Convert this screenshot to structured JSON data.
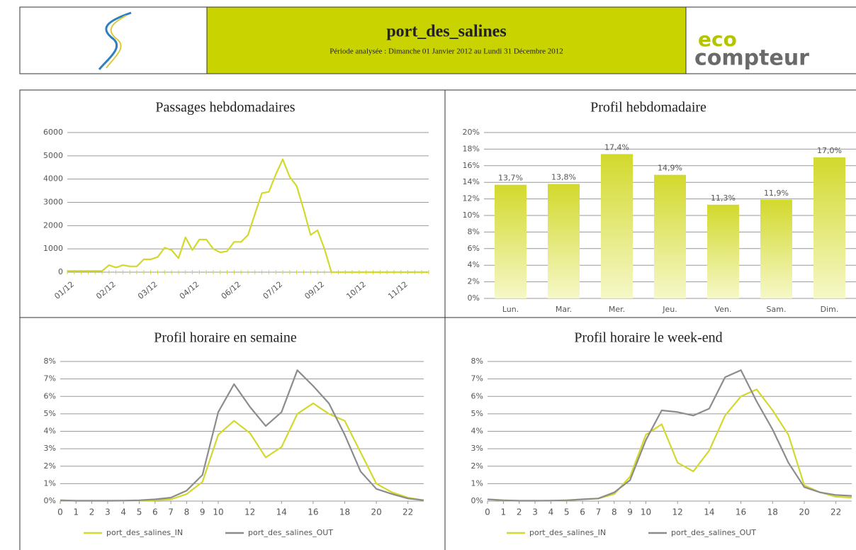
{
  "header": {
    "title": "port_des_salines",
    "subtitle": "Période analysée : Dimanche 01 Janvier 2012 au Lundi 31 Décembre 2012",
    "logo": [
      "eco",
      "compteur"
    ]
  },
  "chart_data": [
    {
      "type": "line",
      "title": "Passages hebdomadaires",
      "categories": [
        "01/12",
        null,
        null,
        null,
        null,
        null,
        "02/12",
        null,
        null,
        null,
        null,
        null,
        "03/12",
        null,
        null,
        null,
        null,
        null,
        "04/12",
        null,
        null,
        null,
        null,
        null,
        "06/12",
        null,
        null,
        null,
        null,
        null,
        "07/12",
        null,
        null,
        null,
        null,
        null,
        "09/12",
        null,
        null,
        null,
        null,
        null,
        "10/12",
        null,
        null,
        null,
        null,
        null,
        "11/12",
        null,
        null,
        null,
        null
      ],
      "series": [
        {
          "name": null,
          "color": "#d2d92c",
          "values": [
            50,
            50,
            50,
            50,
            50,
            50,
            300,
            200,
            300,
            250,
            250,
            550,
            550,
            650,
            1050,
            950,
            600,
            1500,
            950,
            1400,
            1400,
            1000,
            850,
            900,
            1300,
            1300,
            1600,
            2500,
            3400,
            3450,
            4200,
            4850,
            4100,
            3700,
            2700,
            1600,
            1800,
            1000,
            0,
            0,
            0,
            0,
            0,
            0,
            0,
            0,
            0,
            0,
            0,
            0,
            0,
            0,
            0
          ]
        }
      ],
      "ylim": [
        0,
        6000
      ],
      "yticks": [
        0,
        1000,
        2000,
        3000,
        4000,
        5000,
        6000
      ],
      "grid": true
    },
    {
      "type": "bar",
      "title": "Profil hebdomadaire",
      "categories": [
        "Lun.",
        "Mar.",
        "Mer.",
        "Jeu.",
        "Ven.",
        "Sam.",
        "Dim."
      ],
      "values": [
        13.7,
        13.8,
        17.4,
        14.9,
        11.3,
        11.9,
        17.0
      ],
      "value_labels": [
        "13,7%",
        "13,8%",
        "17,4%",
        "14,9%",
        "11,3%",
        "11,9%",
        "17,0%"
      ],
      "color": "#d2d92c",
      "ylim": [
        0,
        20
      ],
      "yticks": [
        {
          "value": 0,
          "label": "0%"
        },
        {
          "value": 2,
          "label": "2%"
        },
        {
          "value": 4,
          "label": "4%"
        },
        {
          "value": 6,
          "label": "6%"
        },
        {
          "value": 8,
          "label": "8%"
        },
        {
          "value": 10,
          "label": "10%"
        },
        {
          "value": 12,
          "label": "12%"
        },
        {
          "value": 14,
          "label": "14%"
        },
        {
          "value": 16,
          "label": "16%"
        },
        {
          "value": 18,
          "label": "18%"
        },
        {
          "value": 20,
          "label": "20%"
        }
      ],
      "grid": true
    },
    {
      "type": "line",
      "title": "Profil horaire en semaine",
      "x": [
        0,
        1,
        2,
        3,
        4,
        5,
        6,
        7,
        8,
        9,
        10,
        11,
        12,
        13,
        14,
        15,
        16,
        17,
        18,
        19,
        20,
        21,
        22,
        23
      ],
      "series": [
        {
          "name": "port_des_salines_IN",
          "color": "#d2d92c",
          "values": [
            0.05,
            0.02,
            0.02,
            0.02,
            0.02,
            0.03,
            0.05,
            0.1,
            0.4,
            1.1,
            3.8,
            4.6,
            3.9,
            2.5,
            3.1,
            5.0,
            5.6,
            5.0,
            4.6,
            2.8,
            1.0,
            0.5,
            0.2,
            0.05
          ]
        },
        {
          "name": "port_des_salines_OUT",
          "color": "#8c8c8c",
          "values": [
            0.05,
            0.02,
            0.02,
            0.02,
            0.03,
            0.05,
            0.1,
            0.2,
            0.6,
            1.5,
            5.1,
            6.7,
            5.4,
            4.3,
            5.1,
            7.5,
            6.6,
            5.6,
            3.8,
            1.7,
            0.7,
            0.4,
            0.15,
            0.05
          ]
        }
      ],
      "xlim": [
        0,
        23
      ],
      "xticks": [
        0,
        1,
        2,
        3,
        4,
        5,
        6,
        7,
        8,
        9,
        10,
        12,
        14,
        16,
        18,
        20,
        22
      ],
      "ylim": [
        0,
        8
      ],
      "yticks": [
        {
          "value": 0,
          "label": "0%"
        },
        {
          "value": 1,
          "label": "1%"
        },
        {
          "value": 2,
          "label": "2%"
        },
        {
          "value": 3,
          "label": "3%"
        },
        {
          "value": 4,
          "label": "4%"
        },
        {
          "value": 5,
          "label": "5%"
        },
        {
          "value": 6,
          "label": "6%"
        },
        {
          "value": 7,
          "label": "7%"
        },
        {
          "value": 8,
          "label": "8%"
        }
      ],
      "grid": true,
      "legend": "bottom"
    },
    {
      "type": "line",
      "title": "Profil horaire le week-end",
      "x": [
        0,
        1,
        2,
        3,
        4,
        5,
        6,
        7,
        8,
        9,
        10,
        11,
        12,
        13,
        14,
        15,
        16,
        17,
        18,
        19,
        20,
        21,
        22,
        23
      ],
      "series": [
        {
          "name": "port_des_salines_IN",
          "color": "#d2d92c",
          "values": [
            0.1,
            0.05,
            0.02,
            0.02,
            0.02,
            0.05,
            0.1,
            0.15,
            0.4,
            1.4,
            3.8,
            4.4,
            2.2,
            1.7,
            2.9,
            4.9,
            6.0,
            6.4,
            5.2,
            3.8,
            0.9,
            0.5,
            0.25,
            0.2
          ]
        },
        {
          "name": "port_des_salines_OUT",
          "color": "#8c8c8c",
          "values": [
            0.1,
            0.05,
            0.02,
            0.02,
            0.03,
            0.05,
            0.1,
            0.15,
            0.5,
            1.2,
            3.5,
            5.2,
            5.1,
            4.9,
            5.3,
            7.1,
            7.5,
            5.7,
            4.1,
            2.2,
            0.8,
            0.5,
            0.35,
            0.3
          ]
        }
      ],
      "xlim": [
        0,
        23
      ],
      "xticks": [
        0,
        1,
        2,
        3,
        4,
        5,
        6,
        7,
        8,
        9,
        10,
        12,
        14,
        16,
        18,
        20,
        22
      ],
      "ylim": [
        0,
        8
      ],
      "yticks": [
        {
          "value": 0,
          "label": "0%"
        },
        {
          "value": 1,
          "label": "1%"
        },
        {
          "value": 2,
          "label": "2%"
        },
        {
          "value": 3,
          "label": "3%"
        },
        {
          "value": 4,
          "label": "4%"
        },
        {
          "value": 5,
          "label": "5%"
        },
        {
          "value": 6,
          "label": "6%"
        },
        {
          "value": 7,
          "label": "7%"
        },
        {
          "value": 8,
          "label": "8%"
        }
      ],
      "grid": true,
      "legend": "bottom"
    }
  ]
}
